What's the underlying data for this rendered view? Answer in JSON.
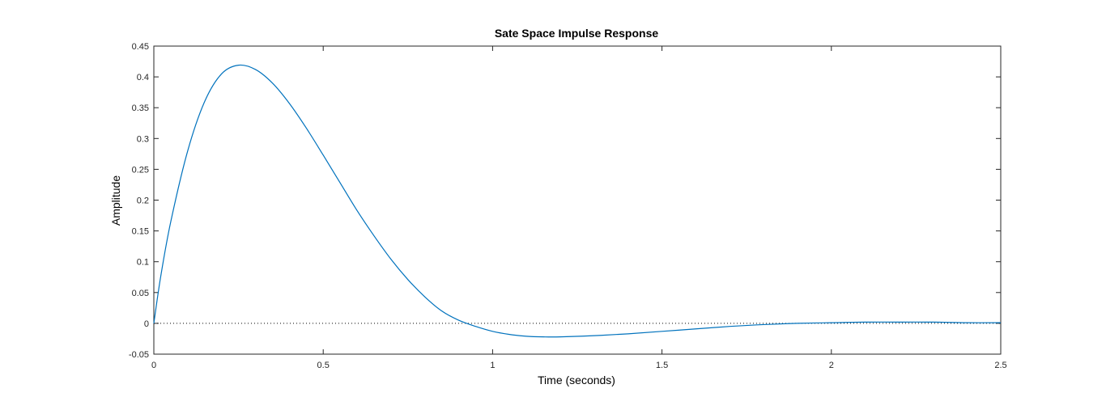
{
  "chart_data": {
    "type": "line",
    "title": "Sate Space Impulse Response",
    "xlabel": "Time (seconds)",
    "ylabel": "Amplitude",
    "xlim": [
      0,
      2.5
    ],
    "ylim": [
      -0.05,
      0.45
    ],
    "x_ticks": [
      0,
      0.5,
      1,
      1.5,
      2,
      2.5
    ],
    "x_tick_labels": [
      "0",
      "0.5",
      "1",
      "1.5",
      "2",
      "2.5"
    ],
    "y_ticks": [
      -0.05,
      0,
      0.05,
      0.1,
      0.15,
      0.2,
      0.25,
      0.3,
      0.35,
      0.4,
      0.45
    ],
    "y_tick_labels": [
      "-0.05",
      "0",
      "0.05",
      "0.1",
      "0.15",
      "0.2",
      "0.25",
      "0.3",
      "0.35",
      "0.4",
      "0.45"
    ],
    "grid": false,
    "zero_reference_line": true,
    "series": [
      {
        "color": "#0072bd",
        "x": [
          0,
          0.02,
          0.05,
          0.1,
          0.15,
          0.2,
          0.25,
          0.3,
          0.35,
          0.4,
          0.45,
          0.5,
          0.55,
          0.6,
          0.65,
          0.7,
          0.75,
          0.8,
          0.85,
          0.9,
          0.95,
          1.0,
          1.05,
          1.1,
          1.15,
          1.2,
          1.3,
          1.4,
          1.5,
          1.6,
          1.7,
          1.8,
          1.9,
          2.0,
          2.1,
          2.2,
          2.3,
          2.4,
          2.5
        ],
        "y": [
          0,
          0.075,
          0.165,
          0.28,
          0.36,
          0.405,
          0.419,
          0.412,
          0.39,
          0.357,
          0.317,
          0.273,
          0.228,
          0.183,
          0.142,
          0.104,
          0.071,
          0.043,
          0.02,
          0.005,
          -0.005,
          -0.013,
          -0.018,
          -0.021,
          -0.022,
          -0.022,
          -0.02,
          -0.017,
          -0.013,
          -0.009,
          -0.005,
          -0.002,
          0.0,
          0.001,
          0.002,
          0.002,
          0.002,
          0.001,
          0.001
        ]
      }
    ]
  }
}
